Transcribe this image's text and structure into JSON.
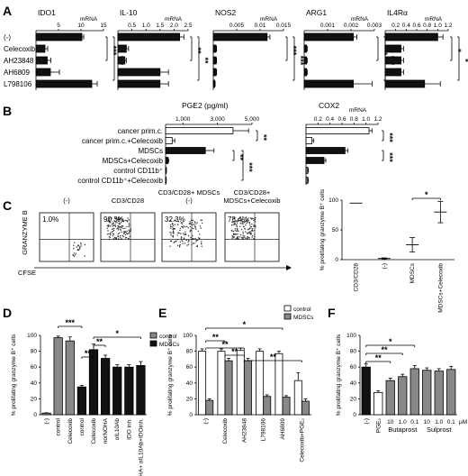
{
  "panels": {
    "A": {
      "label": "A",
      "row_labels": [
        "(-)",
        "Celecoxib",
        "AH23848",
        "AH6809",
        "L798106"
      ],
      "unit": "mRNA",
      "charts": [
        {
          "title": "IDO1",
          "ticks": [
            5,
            10,
            15
          ],
          "max": 15,
          "values": [
            10.2,
            2.0,
            2.5,
            3.2,
            12.4
          ],
          "errors": [
            0.4,
            0.6,
            0.8,
            2.0,
            1.2
          ],
          "sig": [
            "***",
            "***"
          ]
        },
        {
          "title": "IL-10",
          "ticks": [
            "0.5",
            "1.0",
            "1.5",
            "2.0",
            "2.5"
          ],
          "max": 2.5,
          "values": [
            2.2,
            0.3,
            0.25,
            1.5,
            1.5
          ],
          "errors": [
            0.15,
            0.08,
            0.05,
            0.3,
            0.3
          ],
          "sig": [
            "**",
            "**"
          ]
        },
        {
          "title": "NOS2",
          "ticks": [
            "0.005",
            "0.01",
            "0.015"
          ],
          "max": 0.015,
          "values": [
            0.0115,
            0.0006,
            0.0006,
            0.0006,
            0.0003
          ],
          "errors": [
            0.0006,
            0.0001,
            0.0001,
            0.0001,
            0.0001
          ],
          "sig": [
            "***",
            "***"
          ]
        },
        {
          "title": "ARG1",
          "ticks": [
            "0.001",
            "0.002",
            "0.003"
          ],
          "max": 0.003,
          "values": [
            0.0021,
            0.0001,
            0.0001,
            0.0001,
            0.0021
          ],
          "errors": [
            0.00015,
            3e-05,
            3e-05,
            3e-05,
            0.0008
          ],
          "sig": [
            "***",
            "***"
          ]
        },
        {
          "title": "IL4Rα",
          "ticks": [
            "0.2",
            "0.4",
            "0.6",
            "0.8",
            "1.0",
            "1.2"
          ],
          "max": 1.2,
          "values": [
            1.0,
            0.3,
            0.3,
            0.3,
            0.75
          ],
          "errors": [
            0.1,
            0.05,
            0.05,
            0.05,
            0.3
          ],
          "sig": [
            "*",
            "*"
          ]
        }
      ]
    },
    "B": {
      "label": "B",
      "row_labels": [
        "cancer prim.c.",
        "cancer prim.c.+Celecoxib",
        "MDSCs",
        "MDSCs+Celecoxib",
        "control CD11b⁺",
        "control CD11b⁺+Celecoxib"
      ],
      "pge2": {
        "title": "PGE2 (pg/ml)",
        "ticks": [
          "1,000",
          "3,000",
          "5,000"
        ],
        "tick_values": [
          1000,
          3000,
          5000
        ],
        "max": 5000,
        "values": [
          3900,
          380,
          2300,
          140,
          40,
          30
        ],
        "errors": [
          900,
          150,
          500,
          50,
          10,
          10
        ],
        "fill": [
          "w",
          "w",
          "b",
          "b",
          "g",
          "g"
        ],
        "sig": [
          "**",
          "**",
          "***"
        ]
      },
      "cox2": {
        "title": "COX2",
        "unit": "mRNA",
        "ticks": [
          "0.2",
          "0.4",
          "0.6",
          "0.8",
          "1.0",
          "1.2"
        ],
        "max": 1.2,
        "values": [
          1.05,
          0.1,
          0.65,
          0.3,
          0.03,
          0.03
        ],
        "errors": [
          0.05,
          0.03,
          0.05,
          0.03,
          0.01,
          0.01
        ],
        "fill": [
          "w",
          "w",
          "b",
          "b",
          "g",
          "g"
        ],
        "sig": [
          "***",
          "***"
        ]
      }
    },
    "C": {
      "label": "C",
      "y_axis": "GRANZYME B",
      "x_axis": "CFSE",
      "plots": [
        {
          "title": "(-)",
          "pct": "1.0%"
        },
        {
          "title": "CD3/CD28",
          "pct": "90.3%"
        },
        {
          "title": "CD3/CD28+ MDSCs (-)",
          "pct": "32.3%"
        },
        {
          "title": "CD3/CD28+ MDSCs+Celecoxib",
          "pct": "78.4%"
        }
      ],
      "summary": {
        "ylabel": "% prolifating granzyme B⁺ cells",
        "ylim": [
          0,
          100
        ],
        "ticks": [
          "0",
          "50",
          "100"
        ],
        "categories": [
          "CD3/CD28",
          "(-)",
          "MDSCs",
          "MDSCs+Celecoxib"
        ],
        "means": [
          95,
          2,
          25,
          80
        ],
        "errors": [
          0,
          1,
          12,
          18
        ],
        "sig": "*"
      }
    },
    "D": {
      "label": "D",
      "ylabel": "% prolifating granzyme B⁺ cells",
      "ylim": [
        0,
        100
      ],
      "ticks": [
        "0",
        "20",
        "40",
        "60",
        "80",
        "100"
      ],
      "legend": [
        "control",
        "MDSCs"
      ],
      "categories": [
        "(-)",
        "control",
        "Celecoxib",
        "control",
        "Celecoxib",
        "norNOHA",
        "αIL10Ab",
        "IDO inh.",
        "norNOHA+ αIL10Ab+IDOinh."
      ],
      "values": [
        2,
        97,
        93,
        35,
        82,
        71,
        60,
        60,
        62
      ],
      "errors": [
        0.5,
        2,
        5,
        2,
        7,
        4,
        3,
        3,
        5
      ],
      "fill": [
        "g",
        "g",
        "g",
        "b",
        "b",
        "b",
        "b",
        "b",
        "b"
      ],
      "sig": [
        "***",
        "**",
        "**",
        "*"
      ]
    },
    "E": {
      "label": "E",
      "ylabel": "% prolifating granzyme B⁺ cells",
      "ylim": [
        0,
        100
      ],
      "ticks": [
        "0",
        "20",
        "40",
        "60",
        "80",
        "100"
      ],
      "legend": [
        "control",
        "MDSCs"
      ],
      "categories": [
        "(-)",
        "Celecoxib",
        "AH23848",
        "L798106",
        "AH6809",
        "Celecoxib+PGE₂"
      ],
      "control": [
        80,
        80,
        81,
        80,
        77,
        43
      ],
      "control_err": [
        3,
        3,
        3,
        3,
        3,
        10
      ],
      "mdsc": [
        18,
        68,
        68,
        23,
        22,
        17
      ],
      "mdsc_err": [
        2,
        3,
        3,
        2,
        2,
        3
      ],
      "sig": [
        "*",
        "**",
        "**",
        "**",
        "**"
      ]
    },
    "F": {
      "label": "F",
      "ylabel": "% prolifating granzyme B⁺ cells",
      "ylim": [
        0,
        100
      ],
      "ticks": [
        "0",
        "20",
        "40",
        "60",
        "80",
        "100"
      ],
      "categories": [
        "(-)",
        "PGE₂",
        "10",
        "1.0",
        "0.1",
        "10",
        "1.0",
        "0.1"
      ],
      "groups": [
        "Butaprost",
        "Sulprost"
      ],
      "unit": "μM",
      "values": [
        60,
        28,
        43,
        48,
        58,
        56,
        55,
        57
      ],
      "errors": [
        4,
        2,
        3,
        3,
        4,
        3,
        3,
        4
      ],
      "fill": [
        "b",
        "w",
        "g",
        "g",
        "g",
        "g",
        "g",
        "g"
      ],
      "sig": [
        "*",
        "**",
        "**"
      ]
    }
  },
  "colors": {
    "black": "#111111",
    "gray": "#888888",
    "white": "#ffffff"
  }
}
